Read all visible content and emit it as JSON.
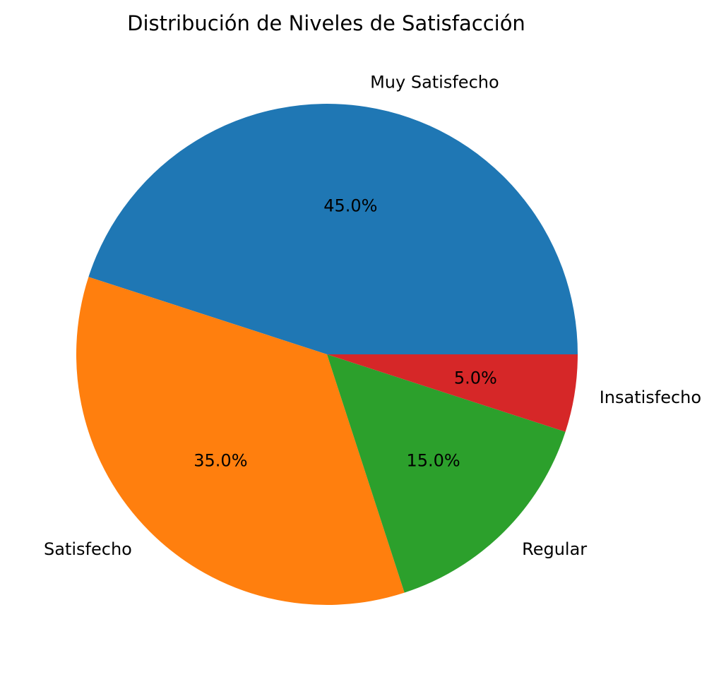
{
  "chart_data": {
    "type": "pie",
    "title": "Distribución de Niveles de Satisfacción",
    "categories": [
      "Muy Satisfecho",
      "Satisfecho",
      "Regular",
      "Insatisfecho"
    ],
    "values": [
      45.0,
      35.0,
      15.0,
      5.0
    ],
    "percent_labels": [
      "45.0%",
      "35.0%",
      "15.0%",
      "5.0%"
    ],
    "colors": [
      "#1f77b4",
      "#ff7f0e",
      "#2ca02c",
      "#d62728"
    ],
    "start_angle_deg": 0,
    "direction": "counterclockwise",
    "legend": "none"
  }
}
